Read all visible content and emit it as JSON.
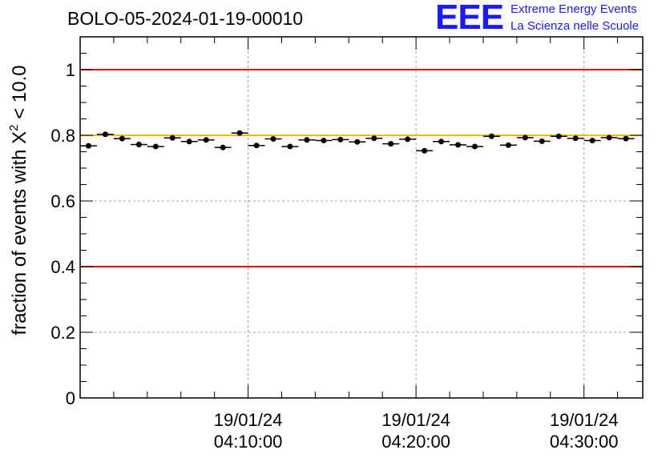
{
  "header": {
    "title": "BOLO-05-2024-01-19-00010",
    "logo_text": "EEE",
    "logo_line1": "Extreme Energy Events",
    "logo_line2": "La Scienza nelle Scuole"
  },
  "colors": {
    "threshold": "#e00000",
    "reference": "#f5b800",
    "logo": "#1a1aff",
    "points": "#000000",
    "grid": "#a0a0a0"
  },
  "chart_data": {
    "type": "scatter",
    "title": "BOLO-05-2024-01-19-00010",
    "ylabel_main": "fraction of events with X",
    "ylabel_sup": "2",
    "ylabel_tail": " < 10.0",
    "xlabel": "",
    "ylim": [
      0,
      1.1
    ],
    "yticks": [
      0,
      0.2,
      0.4,
      0.6,
      0.8,
      1
    ],
    "ytick_labels": [
      "0",
      "0.2",
      "0.4",
      "0.6",
      "0.8",
      "1"
    ],
    "xlim_min": [
      0,
      33.5
    ],
    "xticks": [
      {
        "at_min": 10,
        "date": "19/01/24",
        "time": "04:10:00"
      },
      {
        "at_min": 20,
        "date": "19/01/24",
        "time": "04:20:00"
      },
      {
        "at_min": 30,
        "date": "19/01/24",
        "time": "04:30:00"
      }
    ],
    "grid": true,
    "hlines": [
      {
        "y": 1.0,
        "style": "threshold"
      },
      {
        "y": 0.4,
        "style": "threshold"
      },
      {
        "y": 0.8,
        "style": "reference"
      }
    ],
    "series": [
      {
        "points": [
          {
            "x": 0.5,
            "y": 0.768
          },
          {
            "x": 1.5,
            "y": 0.803
          },
          {
            "x": 2.5,
            "y": 0.79
          },
          {
            "x": 3.5,
            "y": 0.772
          },
          {
            "x": 4.5,
            "y": 0.766
          },
          {
            "x": 5.5,
            "y": 0.792
          },
          {
            "x": 6.5,
            "y": 0.781
          },
          {
            "x": 7.5,
            "y": 0.786
          },
          {
            "x": 8.5,
            "y": 0.763
          },
          {
            "x": 9.5,
            "y": 0.807
          },
          {
            "x": 10.5,
            "y": 0.769
          },
          {
            "x": 11.5,
            "y": 0.789
          },
          {
            "x": 12.5,
            "y": 0.766
          },
          {
            "x": 13.5,
            "y": 0.786
          },
          {
            "x": 14.5,
            "y": 0.784
          },
          {
            "x": 15.5,
            "y": 0.787
          },
          {
            "x": 16.5,
            "y": 0.78
          },
          {
            "x": 17.5,
            "y": 0.791
          },
          {
            "x": 18.5,
            "y": 0.774
          },
          {
            "x": 19.5,
            "y": 0.788
          },
          {
            "x": 20.5,
            "y": 0.753
          },
          {
            "x": 21.5,
            "y": 0.781
          },
          {
            "x": 22.5,
            "y": 0.771
          },
          {
            "x": 23.5,
            "y": 0.766
          },
          {
            "x": 24.5,
            "y": 0.797
          },
          {
            "x": 25.5,
            "y": 0.77
          },
          {
            "x": 26.5,
            "y": 0.793
          },
          {
            "x": 27.5,
            "y": 0.782
          },
          {
            "x": 28.5,
            "y": 0.797
          },
          {
            "x": 29.5,
            "y": 0.791
          },
          {
            "x": 30.5,
            "y": 0.784
          },
          {
            "x": 31.5,
            "y": 0.793
          },
          {
            "x": 32.5,
            "y": 0.79
          }
        ],
        "x_halfwidth": 0.5,
        "y_err": 0.006
      }
    ]
  }
}
